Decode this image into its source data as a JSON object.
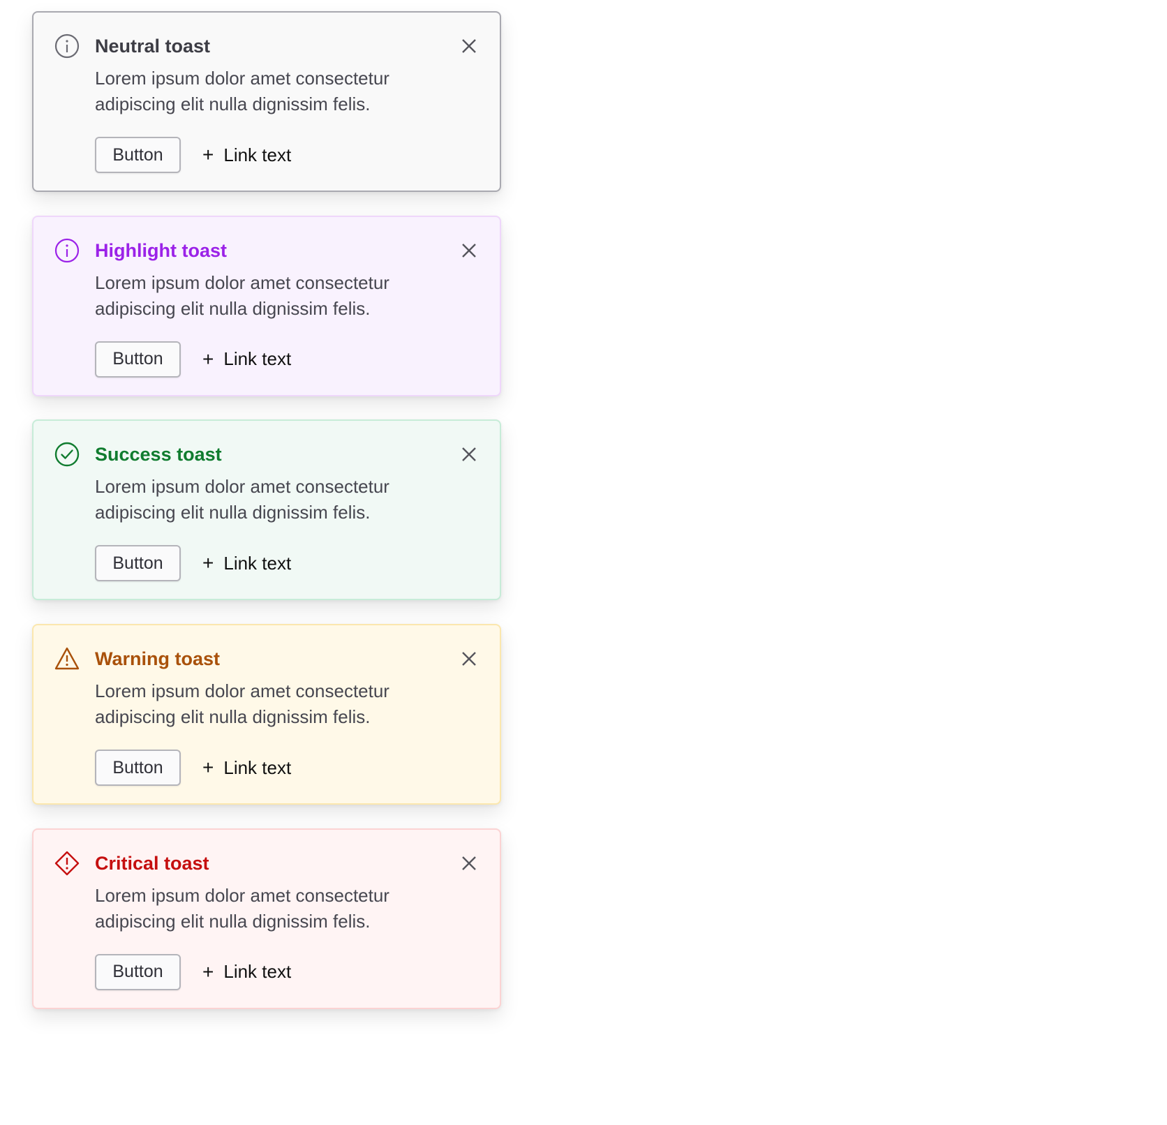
{
  "toasts": [
    {
      "variant": "neutral",
      "title": "Neutral toast",
      "icon": "info-icon",
      "body": "Lorem ipsum dolor amet consectetur adipiscing elit nulla dignissim felis.",
      "button_label": "Button",
      "link_label": "Link text",
      "colors": {
        "bg": "#f9f9f9",
        "border": "#a9a9b0",
        "title": "#3d3d45",
        "icon": "#6b6b73"
      }
    },
    {
      "variant": "highlight",
      "title": "Highlight toast",
      "icon": "info-icon",
      "body": "Lorem ipsum dolor amet consectetur adipiscing elit nulla dignissim felis.",
      "button_label": "Button",
      "link_label": "Link text",
      "colors": {
        "bg": "#f9f2fe",
        "border": "#efd7fb",
        "title": "#9b22e8",
        "icon": "#9b22e8"
      }
    },
    {
      "variant": "success",
      "title": "Success toast",
      "icon": "check-circle-icon",
      "body": "Lorem ipsum dolor amet consectetur adipiscing elit nulla dignissim felis.",
      "button_label": "Button",
      "link_label": "Link text",
      "colors": {
        "bg": "#f1f9f5",
        "border": "#c7ecd8",
        "title": "#107c2f",
        "icon": "#107c2f"
      }
    },
    {
      "variant": "warning",
      "title": "Warning toast",
      "icon": "warning-triangle-icon",
      "body": "Lorem ipsum dolor amet consectetur adipiscing elit nulla dignissim felis.",
      "button_label": "Button",
      "link_label": "Link text",
      "colors": {
        "bg": "#fff9e8",
        "border": "#fbe7ae",
        "title": "#a9510a",
        "icon": "#a9510a"
      }
    },
    {
      "variant": "critical",
      "title": "Critical toast",
      "icon": "critical-diamond-icon",
      "body": "Lorem ipsum dolor amet consectetur adipiscing elit nulla dignissim felis.",
      "button_label": "Button",
      "link_label": "Link text",
      "colors": {
        "bg": "#fff4f4",
        "border": "#fbd3d3",
        "title": "#c50f0f",
        "icon": "#c50f0f"
      }
    }
  ]
}
